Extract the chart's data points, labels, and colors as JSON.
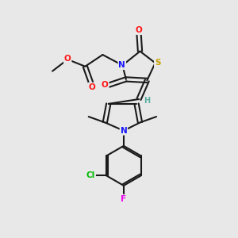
{
  "bg_color": "#e8e8e8",
  "bond_color": "#1a1a1a",
  "atom_colors": {
    "N": "#1414ff",
    "O": "#ff1414",
    "S": "#c8a000",
    "Cl": "#00bb00",
    "F": "#ee00ee",
    "H": "#5aada0",
    "C": "#1a1a1a"
  },
  "lw": 1.5
}
